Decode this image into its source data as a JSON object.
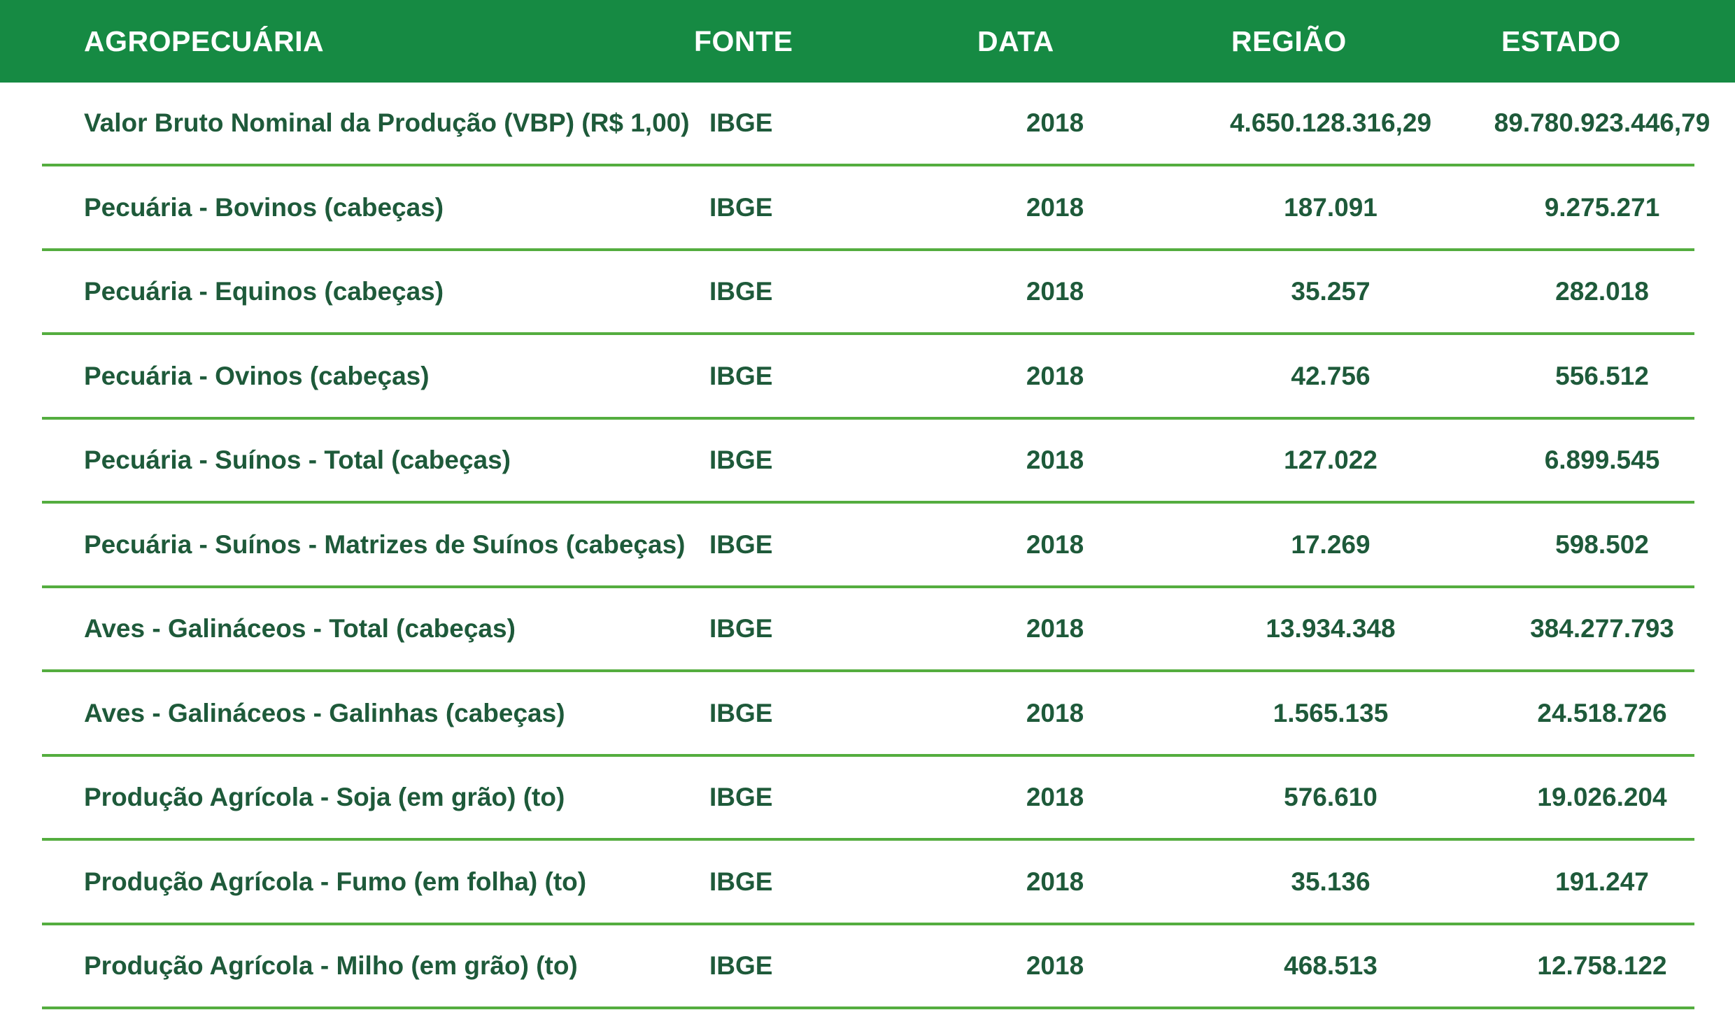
{
  "header": {
    "agropecuaria": "AGROPECUÁRIA",
    "fonte": "FONTE",
    "data": "DATA",
    "regiao": "REGIÃO",
    "estado": "ESTADO"
  },
  "rows": [
    {
      "label": "Valor Bruto Nominal da Produção (VBP) (R$ 1,00)",
      "fonte": "IBGE",
      "data": "2018",
      "regiao": "4.650.128.316,29",
      "estado": "89.780.923.446,79"
    },
    {
      "label": "Pecuária - Bovinos (cabeças)",
      "fonte": "IBGE",
      "data": "2018",
      "regiao": "187.091",
      "estado": "9.275.271"
    },
    {
      "label": "Pecuária - Equinos (cabeças)",
      "fonte": "IBGE",
      "data": "2018",
      "regiao": "35.257",
      "estado": "282.018"
    },
    {
      "label": "Pecuária - Ovinos (cabeças)",
      "fonte": "IBGE",
      "data": "2018",
      "regiao": "42.756",
      "estado": "556.512"
    },
    {
      "label": "Pecuária - Suínos - Total (cabeças)",
      "fonte": "IBGE",
      "data": "2018",
      "regiao": "127.022",
      "estado": "6.899.545"
    },
    {
      "label": "Pecuária - Suínos - Matrizes de Suínos (cabeças)",
      "fonte": "IBGE",
      "data": "2018",
      "regiao": "17.269",
      "estado": "598.502"
    },
    {
      "label": "Aves - Galináceos - Total (cabeças)",
      "fonte": "IBGE",
      "data": "2018",
      "regiao": "13.934.348",
      "estado": "384.277.793"
    },
    {
      "label": "Aves - Galináceos - Galinhas (cabeças)",
      "fonte": "IBGE",
      "data": "2018",
      "regiao": "1.565.135",
      "estado": "24.518.726"
    },
    {
      "label": "Produção Agrícola - Soja (em grão) (to)",
      "fonte": "IBGE",
      "data": "2018",
      "regiao": "576.610",
      "estado": "19.026.204"
    },
    {
      "label": "Produção Agrícola - Fumo (em folha) (to)",
      "fonte": "IBGE",
      "data": "2018",
      "regiao": "35.136",
      "estado": "191.247"
    },
    {
      "label": "Produção Agrícola - Milho (em grão) (to)",
      "fonte": "IBGE",
      "data": "2018",
      "regiao": "468.513",
      "estado": "12.758.122"
    }
  ],
  "colors": {
    "header_bg": "#168a43",
    "row_divider": "#54ad3f",
    "text": "#1e5a3a"
  }
}
